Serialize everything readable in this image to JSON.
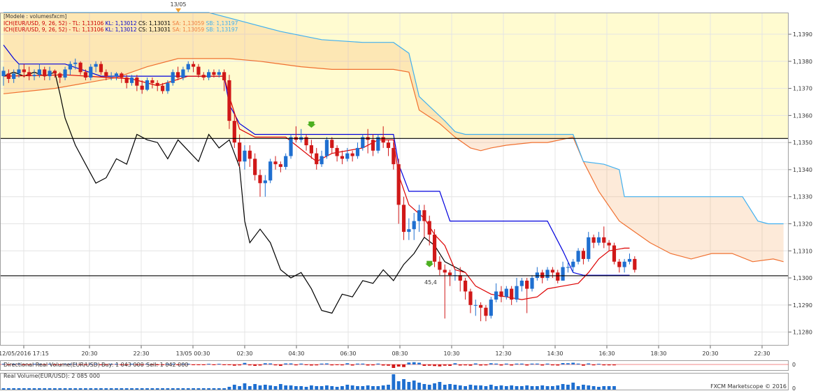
{
  "chart_data": {
    "type": "candlestick",
    "legend": {
      "line1": "[Modele : volumesfxcm]",
      "ich_items": [
        {
          "text": "ICH(EUR/USD, 9, 26, 52) -  TL: 1,13106",
          "color": "#cc0000"
        },
        {
          "text": "KL: 1,13012",
          "color": "#0000cc"
        },
        {
          "text": "CS: 1,13031",
          "color": "#000000"
        },
        {
          "text": "SA: 1,13059",
          "color": "#f08040"
        },
        {
          "text": "SB: 1,13197",
          "color": "#40b0f0"
        }
      ]
    },
    "top_marker": "13/05",
    "y_ticks": [
      "1,1390",
      "1,1380",
      "1,1370",
      "1,1360",
      "1,1350",
      "1,1340",
      "1,1330",
      "1,1320",
      "1,1310",
      "1,1300",
      "1,1290",
      "1,1280"
    ],
    "ylim": [
      1.1275,
      1.1398
    ],
    "x_ticks": [
      "12/05/2016 17:15",
      "20:30",
      "22:30",
      "13/05 00:30",
      "02:30",
      "04:30",
      "06:30",
      "08:30",
      "10:30",
      "12:30",
      "14:30",
      "16:30",
      "18:30",
      "20:30",
      "22:30"
    ],
    "hlines": [
      1.13515,
      1.13008
    ],
    "annotation": "45,4",
    "candles": [
      [
        1.13745,
        1.13765,
        1.1371,
        1.1378
      ],
      [
        1.13755,
        1.13735,
        1.1372,
        1.1377
      ],
      [
        1.13735,
        1.13755,
        1.1372,
        1.1377
      ],
      [
        1.13755,
        1.1377,
        1.1374,
        1.1379
      ],
      [
        1.1377,
        1.1376,
        1.1374,
        1.1379
      ],
      [
        1.1376,
        1.13745,
        1.1373,
        1.1378
      ],
      [
        1.13745,
        1.1375,
        1.1373,
        1.1377
      ],
      [
        1.1375,
        1.1377,
        1.1374,
        1.1379
      ],
      [
        1.1377,
        1.13745,
        1.1373,
        1.1378
      ],
      [
        1.13745,
        1.13765,
        1.1373,
        1.1378
      ],
      [
        1.13765,
        1.13755,
        1.1374,
        1.1377
      ],
      [
        1.13755,
        1.1374,
        1.1372,
        1.1376
      ],
      [
        1.1374,
        1.1377,
        1.1373,
        1.1378
      ],
      [
        1.1377,
        1.1379,
        1.1375,
        1.138
      ],
      [
        1.1379,
        1.13795,
        1.1377,
        1.1381
      ],
      [
        1.13795,
        1.1376,
        1.1375,
        1.138
      ],
      [
        1.1376,
        1.1374,
        1.1373,
        1.1377
      ],
      [
        1.1374,
        1.1378,
        1.1373,
        1.1379
      ],
      [
        1.1378,
        1.1379,
        1.1376,
        1.138
      ],
      [
        1.1379,
        1.1376,
        1.1375,
        1.138
      ],
      [
        1.1376,
        1.13745,
        1.1373,
        1.1377
      ],
      [
        1.13745,
        1.13745,
        1.1373,
        1.1376
      ],
      [
        1.13745,
        1.13755,
        1.1373,
        1.1376
      ],
      [
        1.13755,
        1.1374,
        1.1372,
        1.1376
      ],
      [
        1.1374,
        1.1372,
        1.137,
        1.1375
      ],
      [
        1.1372,
        1.1374,
        1.1371,
        1.1375
      ],
      [
        1.1374,
        1.1371,
        1.1369,
        1.1375
      ],
      [
        1.1371,
        1.13695,
        1.1368,
        1.1373
      ],
      [
        1.13695,
        1.1373,
        1.1369,
        1.1374
      ],
      [
        1.1373,
        1.1372,
        1.137,
        1.1374
      ],
      [
        1.1372,
        1.1371,
        1.1369,
        1.1373
      ],
      [
        1.1371,
        1.1369,
        1.1368,
        1.1372
      ],
      [
        1.1369,
        1.1372,
        1.1368,
        1.1373
      ],
      [
        1.1372,
        1.1376,
        1.1371,
        1.1377
      ],
      [
        1.1376,
        1.1374,
        1.1373,
        1.1378
      ],
      [
        1.1374,
        1.1377,
        1.1373,
        1.1378
      ],
      [
        1.1377,
        1.1379,
        1.1376,
        1.138
      ],
      [
        1.1379,
        1.1378,
        1.1376,
        1.138
      ],
      [
        1.1378,
        1.1375,
        1.1374,
        1.1379
      ],
      [
        1.1375,
        1.1374,
        1.1373,
        1.1376
      ],
      [
        1.1374,
        1.1376,
        1.1373,
        1.1377
      ],
      [
        1.1376,
        1.1375,
        1.1374,
        1.1377
      ],
      [
        1.1375,
        1.1376,
        1.1374,
        1.1377
      ],
      [
        1.1376,
        1.1373,
        1.1369,
        1.1377
      ],
      [
        1.1373,
        1.1358,
        1.1355,
        1.1375
      ],
      [
        1.1358,
        1.135,
        1.1348,
        1.1361
      ],
      [
        1.135,
        1.1343,
        1.1341,
        1.1353
      ],
      [
        1.1343,
        1.1347,
        1.134,
        1.1349
      ],
      [
        1.1347,
        1.1344,
        1.1341,
        1.1349
      ],
      [
        1.1344,
        1.1338,
        1.1336,
        1.1346
      ],
      [
        1.1338,
        1.1335,
        1.133,
        1.134
      ],
      [
        1.1335,
        1.1336,
        1.133,
        1.1338
      ],
      [
        1.1336,
        1.1343,
        1.1335,
        1.1344
      ],
      [
        1.1343,
        1.1342,
        1.134,
        1.1345
      ],
      [
        1.1342,
        1.1341,
        1.1339,
        1.1343
      ],
      [
        1.1341,
        1.1345,
        1.134,
        1.1346
      ],
      [
        1.1345,
        1.1352,
        1.1344,
        1.1353
      ],
      [
        1.1352,
        1.1351,
        1.135,
        1.1356
      ],
      [
        1.1351,
        1.1352,
        1.135,
        1.1355
      ],
      [
        1.1352,
        1.1349,
        1.1347,
        1.1353
      ],
      [
        1.1349,
        1.1346,
        1.1344,
        1.1351
      ],
      [
        1.1346,
        1.1342,
        1.134,
        1.1348
      ],
      [
        1.1342,
        1.1345,
        1.1341,
        1.1347
      ],
      [
        1.1345,
        1.1351,
        1.1344,
        1.1352
      ],
      [
        1.1351,
        1.1348,
        1.1346,
        1.1352
      ],
      [
        1.1348,
        1.1345,
        1.1343,
        1.1349
      ],
      [
        1.1345,
        1.1344,
        1.1342,
        1.1347
      ],
      [
        1.1344,
        1.1346,
        1.1343,
        1.1348
      ],
      [
        1.1346,
        1.1345,
        1.1343,
        1.1347
      ],
      [
        1.1345,
        1.1348,
        1.1344,
        1.135
      ],
      [
        1.1348,
        1.1352,
        1.1347,
        1.1353
      ],
      [
        1.1352,
        1.1351,
        1.1346,
        1.1355
      ],
      [
        1.1351,
        1.1347,
        1.1345,
        1.1353
      ],
      [
        1.1347,
        1.1352,
        1.1346,
        1.1353
      ],
      [
        1.1352,
        1.135,
        1.1348,
        1.1356
      ],
      [
        1.135,
        1.1348,
        1.1345,
        1.1351
      ],
      [
        1.1348,
        1.1342,
        1.134,
        1.135
      ],
      [
        1.1342,
        1.1327,
        1.132,
        1.1344
      ],
      [
        1.1327,
        1.1317,
        1.1314,
        1.133
      ],
      [
        1.1317,
        1.1318,
        1.1314,
        1.1322
      ],
      [
        1.1318,
        1.1321,
        1.1314,
        1.1324
      ],
      [
        1.1321,
        1.1325,
        1.1317,
        1.1327
      ],
      [
        1.1325,
        1.1321,
        1.1315,
        1.1327
      ],
      [
        1.1321,
        1.1316,
        1.1312,
        1.1323
      ],
      [
        1.1316,
        1.1306,
        1.1304,
        1.1318
      ],
      [
        1.1306,
        1.1303,
        1.1301,
        1.1308
      ],
      [
        1.1303,
        1.1302,
        1.1285,
        1.1305
      ],
      [
        1.1302,
        1.1301,
        1.1297,
        1.1303
      ],
      [
        1.1301,
        1.1301,
        1.1299,
        1.1303
      ],
      [
        1.1301,
        1.1299,
        1.1295,
        1.1304
      ],
      [
        1.1299,
        1.1295,
        1.1292,
        1.13
      ],
      [
        1.1295,
        1.129,
        1.1287,
        1.1296
      ],
      [
        1.129,
        1.129,
        1.1286,
        1.1292
      ],
      [
        1.129,
        1.1289,
        1.1284,
        1.1291
      ],
      [
        1.1289,
        1.1286,
        1.1284,
        1.129
      ],
      [
        1.1286,
        1.1292,
        1.1285,
        1.1293
      ],
      [
        1.1292,
        1.1295,
        1.1291,
        1.1298
      ],
      [
        1.1295,
        1.1293,
        1.1291,
        1.1297
      ],
      [
        1.1293,
        1.1296,
        1.1292,
        1.1297
      ],
      [
        1.1296,
        1.1292,
        1.129,
        1.1297
      ],
      [
        1.1292,
        1.1297,
        1.1291,
        1.13
      ],
      [
        1.1297,
        1.1299,
        1.1295,
        1.13
      ],
      [
        1.1299,
        1.1296,
        1.1287,
        1.13
      ],
      [
        1.1296,
        1.13,
        1.1295,
        1.1301
      ],
      [
        1.13,
        1.1302,
        1.1299,
        1.1304
      ],
      [
        1.1302,
        1.13,
        1.1298,
        1.1303
      ],
      [
        1.13,
        1.1303,
        1.1299,
        1.1304
      ],
      [
        1.1303,
        1.1302,
        1.13,
        1.1304
      ],
      [
        1.1302,
        1.1299,
        1.1298,
        1.1303
      ],
      [
        1.1299,
        1.1304,
        1.1299,
        1.1306
      ],
      [
        1.1304,
        1.1304,
        1.1302,
        1.1306
      ],
      [
        1.1304,
        1.1306,
        1.1302,
        1.1307
      ],
      [
        1.1306,
        1.131,
        1.1305,
        1.1311
      ],
      [
        1.131,
        1.1307,
        1.1305,
        1.1311
      ],
      [
        1.1307,
        1.1315,
        1.1306,
        1.1317
      ],
      [
        1.1315,
        1.1313,
        1.1311,
        1.1316
      ],
      [
        1.1313,
        1.1315,
        1.1312,
        1.1317
      ],
      [
        1.1315,
        1.1313,
        1.1311,
        1.1319
      ],
      [
        1.1313,
        1.1312,
        1.131,
        1.1314
      ],
      [
        1.1312,
        1.1306,
        1.1305,
        1.1313
      ],
      [
        1.1306,
        1.1304,
        1.1302,
        1.1307
      ],
      [
        1.1304,
        1.1306,
        1.1302,
        1.1307
      ],
      [
        1.1306,
        1.1307,
        1.1305,
        1.1309
      ],
      [
        1.1307,
        1.1303,
        1.1302,
        1.1308
      ]
    ],
    "tenkan": [
      [
        0,
        1.13745
      ],
      [
        12,
        1.1375
      ],
      [
        25,
        1.13735
      ],
      [
        30,
        1.1371
      ],
      [
        36,
        1.13745
      ],
      [
        43,
        1.13745
      ],
      [
        44,
        1.1367
      ],
      [
        46,
        1.1355
      ],
      [
        49,
        1.1352
      ],
      [
        55,
        1.1352
      ],
      [
        57,
        1.1349
      ],
      [
        61,
        1.1343
      ],
      [
        64,
        1.1346
      ],
      [
        70,
        1.1348
      ],
      [
        73,
        1.1351
      ],
      [
        76,
        1.1351
      ],
      [
        77,
        1.1338
      ],
      [
        79,
        1.1327
      ],
      [
        82,
        1.1322
      ],
      [
        84,
        1.1316
      ],
      [
        86,
        1.1312
      ],
      [
        88,
        1.1303
      ],
      [
        90,
        1.1302
      ],
      [
        92,
        1.1297
      ],
      [
        95,
        1.1294
      ],
      [
        98,
        1.1293
      ],
      [
        101,
        1.1292
      ],
      [
        104,
        1.1293
      ],
      [
        106,
        1.1296
      ],
      [
        109,
        1.1297
      ],
      [
        112,
        1.1298
      ],
      [
        114,
        1.1302
      ],
      [
        116,
        1.1307
      ],
      [
        118,
        1.131
      ],
      [
        121,
        1.1311
      ],
      [
        122,
        1.1311
      ]
    ],
    "kijun": [
      [
        0,
        1.1386
      ],
      [
        2,
        1.1381
      ],
      [
        3,
        1.1379
      ],
      [
        12,
        1.1379
      ],
      [
        19,
        1.13745
      ],
      [
        43,
        1.13745
      ],
      [
        44,
        1.1364
      ],
      [
        46,
        1.1357
      ],
      [
        49,
        1.1353
      ],
      [
        76,
        1.1353
      ],
      [
        77,
        1.1342
      ],
      [
        79,
        1.1332
      ],
      [
        85,
        1.1332
      ],
      [
        87,
        1.1321
      ],
      [
        106,
        1.1321
      ],
      [
        109,
        1.131
      ],
      [
        111,
        1.1302
      ],
      [
        113,
        1.1301
      ],
      [
        122,
        1.1301
      ]
    ],
    "chikou": [
      [
        0,
        1.13745
      ],
      [
        2,
        1.1376
      ],
      [
        4,
        1.13745
      ],
      [
        6,
        1.1376
      ],
      [
        8,
        1.13745
      ],
      [
        10,
        1.1376
      ],
      [
        11,
        1.1368
      ],
      [
        12,
        1.1359
      ],
      [
        14,
        1.1349
      ],
      [
        16,
        1.1342
      ],
      [
        18,
        1.1335
      ],
      [
        20,
        1.1337
      ],
      [
        22,
        1.1344
      ],
      [
        24,
        1.1342
      ],
      [
        26,
        1.1353
      ],
      [
        28,
        1.1351
      ],
      [
        30,
        1.135
      ],
      [
        32,
        1.1344
      ],
      [
        34,
        1.1351
      ],
      [
        36,
        1.1347
      ],
      [
        38,
        1.1343
      ],
      [
        40,
        1.1353
      ],
      [
        42,
        1.1348
      ],
      [
        44,
        1.1351
      ],
      [
        46,
        1.1341
      ],
      [
        47,
        1.1321
      ],
      [
        48,
        1.1313
      ],
      [
        50,
        1.1318
      ],
      [
        52,
        1.1313
      ],
      [
        54,
        1.1303
      ],
      [
        56,
        1.13
      ],
      [
        58,
        1.1302
      ],
      [
        60,
        1.1296
      ],
      [
        62,
        1.1288
      ],
      [
        64,
        1.1287
      ],
      [
        66,
        1.1294
      ],
      [
        68,
        1.1293
      ],
      [
        70,
        1.1299
      ],
      [
        72,
        1.1298
      ],
      [
        74,
        1.1303
      ],
      [
        76,
        1.1299
      ],
      [
        78,
        1.1305
      ],
      [
        80,
        1.1309
      ],
      [
        82,
        1.1315
      ],
      [
        84,
        1.1312
      ],
      [
        86,
        1.1306
      ],
      [
        88,
        1.1304
      ],
      [
        90,
        1.1302
      ]
    ],
    "senkou_a": [
      [
        0,
        1.1368
      ],
      [
        10,
        1.137
      ],
      [
        22,
        1.1374
      ],
      [
        28,
        1.1378
      ],
      [
        34,
        1.1381
      ],
      [
        44,
        1.1381
      ],
      [
        50,
        1.138
      ],
      [
        58,
        1.1378
      ],
      [
        64,
        1.1377
      ],
      [
        76,
        1.1377
      ],
      [
        79,
        1.1376
      ],
      [
        81,
        1.1362
      ],
      [
        85,
        1.1357
      ],
      [
        88,
        1.1352
      ],
      [
        91,
        1.1348
      ],
      [
        93,
        1.1347
      ],
      [
        95,
        1.1348
      ],
      [
        98,
        1.1349
      ],
      [
        103,
        1.135
      ],
      [
        106,
        1.135
      ],
      [
        111,
        1.1352
      ],
      [
        113,
        1.1343
      ],
      [
        116,
        1.1332
      ],
      [
        120,
        1.1321
      ],
      [
        123,
        1.1317
      ],
      [
        126,
        1.1313
      ],
      [
        130,
        1.1309
      ],
      [
        134,
        1.1307
      ],
      [
        138,
        1.1309
      ],
      [
        142,
        1.1309
      ],
      [
        146,
        1.1306
      ],
      [
        150,
        1.1307
      ],
      [
        152,
        1.1306
      ]
    ],
    "senkou_b": [
      [
        0,
        1.1398
      ],
      [
        24,
        1.1398
      ],
      [
        40,
        1.1398
      ],
      [
        46,
        1.1395
      ],
      [
        54,
        1.1391
      ],
      [
        62,
        1.1388
      ],
      [
        70,
        1.1387
      ],
      [
        76,
        1.1387
      ],
      [
        79,
        1.1383
      ],
      [
        81,
        1.1367
      ],
      [
        86,
        1.1358
      ],
      [
        88,
        1.1354
      ],
      [
        90,
        1.1353
      ],
      [
        96,
        1.1353
      ],
      [
        104,
        1.1353
      ],
      [
        111,
        1.1353
      ],
      [
        113,
        1.1343
      ],
      [
        117,
        1.1342
      ],
      [
        120,
        1.134
      ],
      [
        121,
        1.133
      ],
      [
        130,
        1.133
      ],
      [
        144,
        1.133
      ],
      [
        147,
        1.1321
      ],
      [
        149,
        1.132
      ],
      [
        152,
        1.132
      ]
    ],
    "drv_panel": {
      "label": "Directional Real Volume(EUR/USD)",
      "buy": "Buy: 1 043 000",
      "sell": "Sell: 1 042 000",
      "zero_tick": "0"
    },
    "rv_panel": {
      "label": "Real Volume(EUR/USD): 2 085 000",
      "zero_tick": "0"
    },
    "volume": [
      4,
      4,
      4,
      4,
      4,
      4,
      4,
      4,
      4,
      4,
      4,
      4,
      4,
      4,
      4,
      4,
      4,
      4,
      4,
      4,
      4,
      4,
      4,
      4,
      4,
      4,
      4,
      4,
      4,
      4,
      4,
      4,
      4,
      4,
      4,
      4,
      4,
      4,
      4,
      4,
      4,
      4,
      4,
      4,
      8,
      14,
      10,
      18,
      10,
      16,
      12,
      14,
      12,
      10,
      16,
      12,
      12,
      10,
      10,
      8,
      12,
      10,
      10,
      12,
      10,
      8,
      10,
      14,
      12,
      10,
      10,
      12,
      10,
      10,
      12,
      14,
      48,
      24,
      30,
      22,
      26,
      20,
      16,
      14,
      18,
      22,
      14,
      16,
      14,
      12,
      10,
      14,
      12,
      12,
      10,
      14,
      10,
      12,
      10,
      12,
      10,
      10,
      12,
      10,
      10,
      12,
      10,
      10,
      12,
      16,
      14,
      20,
      10,
      14,
      12,
      10,
      8,
      10,
      10,
      10
    ],
    "footer": "FXCM Marketscope © 2016"
  }
}
